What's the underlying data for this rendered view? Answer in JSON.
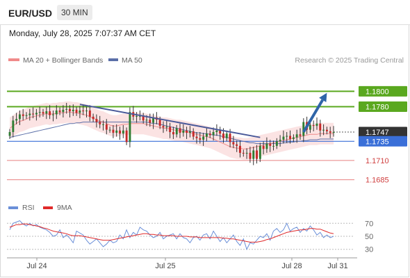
{
  "header": {
    "symbol": "EUR/USD",
    "timeframe": "30 MIN"
  },
  "datetime": "Monday, July 28, 2025 7:07:37 AM CET",
  "legend": {
    "ma20": "MA 20 + Bollinger Bands",
    "ma50": "MA 50",
    "credit": "Research © 2025 Trading Central",
    "rsi": "RSI",
    "ma9": "9MA"
  },
  "colors": {
    "resistance": "#5aa81f",
    "support": "#3a6fd8",
    "target": "#e88080",
    "current": "#333333",
    "bb_fill": "#fadada",
    "ma20": "#f08a8a",
    "ma50": "#5b6fa8",
    "up": "#2e7d32",
    "down": "#c62828",
    "arrow": "#2f65a8",
    "rsi": "#6a8fd8",
    "ma9": "#e02a2a"
  },
  "chart_data": [
    {
      "type": "candlestick",
      "title": "EUR/USD 30 MIN",
      "ylim": [
        1.1662,
        1.1832
      ],
      "x_ticks": [
        "Jul 24",
        "Jul 25",
        "Jul 28",
        "Jul 31"
      ],
      "levels": [
        {
          "label": "1.1800",
          "value": 1.18,
          "kind": "resistance"
        },
        {
          "label": "1.1780",
          "value": 1.178,
          "kind": "resistance"
        },
        {
          "label": "1.1747",
          "value": 1.1747,
          "kind": "current"
        },
        {
          "label": "1.1735",
          "value": 1.1735,
          "kind": "support"
        },
        {
          "label": "1.1710",
          "value": 1.171,
          "kind": "target"
        },
        {
          "label": "1.1685",
          "value": 1.1685,
          "kind": "target"
        }
      ],
      "close": [
        1.1747,
        1.1762,
        1.1764,
        1.177,
        1.1768,
        1.1769,
        1.1771,
        1.177,
        1.1772,
        1.1773,
        1.1771,
        1.1774,
        1.1769,
        1.177,
        1.1775,
        1.1773,
        1.1776,
        1.1777,
        1.1774,
        1.1776,
        1.1772,
        1.1775,
        1.1774,
        1.1775,
        1.1767,
        1.1764,
        1.176,
        1.1757,
        1.1757,
        1.175,
        1.175,
        1.1746,
        1.1749,
        1.1745,
        1.1749,
        1.1734,
        1.1773,
        1.1767,
        1.1768,
        1.1768,
        1.1762,
        1.1763,
        1.1759,
        1.1766,
        1.1763,
        1.1755,
        1.1753,
        1.1754,
        1.1747,
        1.1744,
        1.1752,
        1.1746,
        1.1749,
        1.1746,
        1.1748,
        1.1741,
        1.1739,
        1.1737,
        1.1741,
        1.1745,
        1.1743,
        1.1747,
        1.1749,
        1.1745,
        1.1739,
        1.1745,
        1.1734,
        1.1731,
        1.1729,
        1.172,
        1.1719,
        1.172,
        1.1712,
        1.1723,
        1.1712,
        1.1729,
        1.1725,
        1.1732,
        1.1729,
        1.1729,
        1.1735,
        1.1737,
        1.1741,
        1.1742,
        1.1738,
        1.174,
        1.1744,
        1.1742,
        1.176,
        1.175,
        1.1756,
        1.1755,
        1.1758,
        1.1749,
        1.175,
        1.1748,
        1.1746,
        1.1747
      ],
      "ma20": [
        1.1752,
        1.1755,
        1.1758,
        1.1761,
        1.1762,
        1.1764,
        1.1766,
        1.1767,
        1.1768,
        1.1769,
        1.177,
        1.1771,
        1.177,
        1.1771,
        1.1771,
        1.1772,
        1.1772,
        1.1773,
        1.1773,
        1.1772,
        1.1772,
        1.1771,
        1.177,
        1.1769,
        1.1767,
        1.1765,
        1.1763,
        1.1761,
        1.176,
        1.1758,
        1.1756,
        1.1755,
        1.1755,
        1.1756,
        1.1757,
        1.1757,
        1.1758,
        1.1758,
        1.1758,
        1.1758,
        1.1758,
        1.1757,
        1.1756,
        1.1755,
        1.1754,
        1.1753,
        1.1752,
        1.1752,
        1.1751,
        1.175,
        1.1749,
        1.1749,
        1.1748,
        1.1747,
        1.1746,
        1.1745,
        1.1744,
        1.1743,
        1.1742,
        1.1741,
        1.174,
        1.1738,
        1.1736,
        1.1734,
        1.1732,
        1.173,
        1.1728,
        1.1727,
        1.1726,
        1.1726,
        1.1725,
        1.1725,
        1.1726,
        1.1727,
        1.1728,
        1.1729,
        1.173,
        1.1731,
        1.1732,
        1.1733,
        1.1734,
        1.1735,
        1.1736,
        1.1737,
        1.1738,
        1.1739,
        1.174,
        1.1741,
        1.1742,
        1.1743,
        1.1744,
        1.1744,
        1.1744,
        1.1745,
        1.1745,
        1.1745,
        1.1745,
        1.1745
      ],
      "ma50": [
        1.174,
        1.1741,
        1.1742,
        1.1743,
        1.1744,
        1.1745,
        1.1746,
        1.1747,
        1.1748,
        1.1749,
        1.175,
        1.1751,
        1.1752,
        1.1753,
        1.1754,
        1.1755,
        1.1756,
        1.1757,
        1.1758,
        1.1758,
        1.1759,
        1.1759,
        1.176,
        1.176,
        1.176,
        1.176,
        1.176,
        1.176,
        1.176,
        1.176,
        1.176,
        1.176,
        1.176,
        1.176,
        1.176,
        1.176,
        1.176,
        1.176,
        1.176,
        1.176,
        1.176,
        1.176,
        1.1759,
        1.1758,
        1.1758,
        1.1757,
        1.1756,
        1.1755,
        1.1754,
        1.1753,
        1.1752,
        1.1751,
        1.175,
        1.1749,
        1.1748,
        1.1747,
        1.1746,
        1.1746,
        1.1745,
        1.1745,
        1.1744,
        1.1743,
        1.1743,
        1.1742,
        1.1741,
        1.174,
        1.1739,
        1.1738,
        1.1737,
        1.1736,
        1.1735,
        1.1734,
        1.1733,
        1.1733,
        1.1732,
        1.1732,
        1.1732,
        1.1732,
        1.1732,
        1.1732,
        1.1732,
        1.1732,
        1.1733,
        1.1733,
        1.1734,
        1.1734,
        1.1735,
        1.1735,
        1.1736,
        1.1736,
        1.1737,
        1.1737,
        1.1737,
        1.1738,
        1.1738,
        1.1738,
        1.1738,
        1.1738
      ],
      "trendline": {
        "from": [
          21,
          1.1783
        ],
        "to": [
          75,
          1.174
        ]
      },
      "projection_arrow": {
        "from": [
          88,
          1.1747
        ],
        "to": [
          95,
          1.1798
        ]
      }
    },
    {
      "type": "line",
      "title": "RSI",
      "ylim": [
        20,
        80
      ],
      "y_ticks": [
        70,
        50,
        30
      ],
      "series": [
        {
          "name": "RSI",
          "values": [
            60,
            70,
            72,
            74,
            69,
            66,
            70,
            66,
            68,
            64,
            62,
            60,
            56,
            50,
            52,
            60,
            48,
            52,
            47,
            40,
            58,
            55,
            52,
            44,
            38,
            42,
            46,
            40,
            34,
            38,
            44,
            40,
            42,
            52,
            46,
            60,
            48,
            56,
            52,
            64,
            60,
            58,
            52,
            48,
            50,
            56,
            46,
            50,
            52,
            54,
            46,
            54,
            48,
            46,
            40,
            48,
            50,
            44,
            52,
            54,
            46,
            58,
            50,
            42,
            48,
            40,
            46,
            52,
            42,
            36,
            46,
            30,
            40,
            38,
            44,
            50,
            48,
            54,
            44,
            58,
            62,
            56,
            60,
            70,
            58,
            62,
            64,
            56,
            62,
            58,
            66,
            60,
            52,
            56,
            48,
            52,
            48,
            50
          ]
        },
        {
          "name": "9MA",
          "values": [
            64,
            66,
            68,
            68,
            69,
            69,
            68,
            67,
            66,
            65,
            63,
            62,
            60,
            58,
            57,
            56,
            55,
            54,
            52,
            51,
            51,
            51,
            50,
            49,
            48,
            47,
            46,
            45,
            44,
            44,
            44,
            45,
            46,
            47,
            48,
            49,
            50,
            51,
            52,
            53,
            54,
            54,
            53,
            53,
            52,
            52,
            51,
            51,
            51,
            51,
            50,
            50,
            50,
            50,
            49,
            49,
            49,
            48,
            48,
            48,
            48,
            48,
            48,
            48,
            47,
            47,
            46,
            46,
            45,
            44,
            43,
            42,
            41,
            41,
            41,
            42,
            43,
            45,
            46,
            48,
            50,
            52,
            54,
            56,
            57,
            58,
            59,
            60,
            60,
            61,
            62,
            62,
            61,
            61,
            59,
            57,
            55,
            54
          ]
        }
      ]
    }
  ]
}
